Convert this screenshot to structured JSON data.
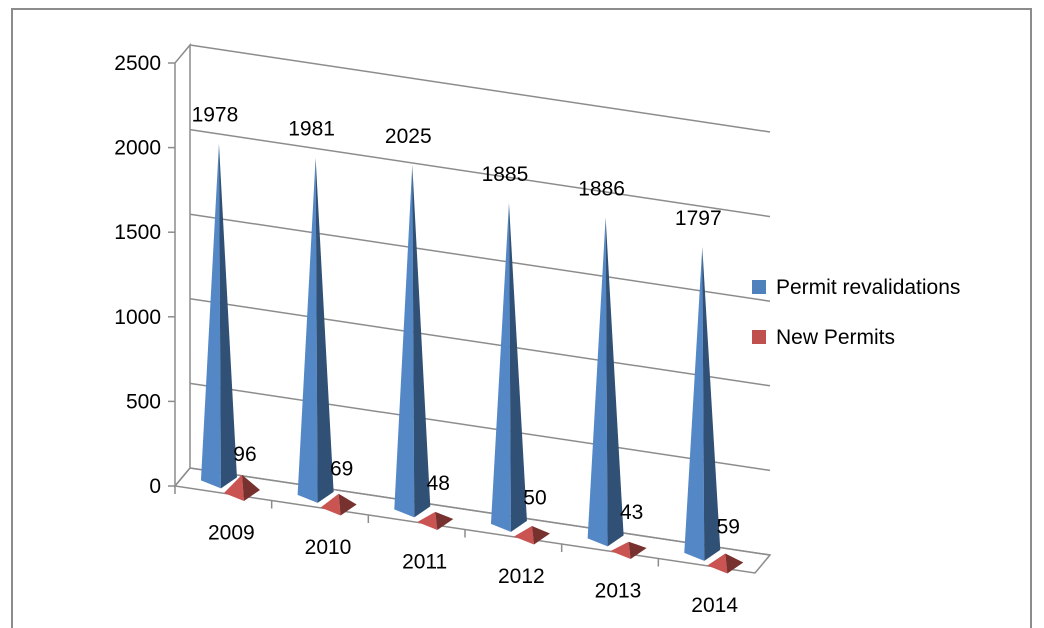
{
  "chart_data": {
    "type": "bar",
    "style": "3d-pyramid",
    "categories": [
      "2009",
      "2010",
      "2011",
      "2012",
      "2013",
      "2014"
    ],
    "series": [
      {
        "name": "Permit revalidations",
        "values": [
          1978,
          1981,
          2025,
          1885,
          1886,
          1797
        ],
        "color": "#4f81bd"
      },
      {
        "name": "New Permits",
        "values": [
          96,
          69,
          48,
          50,
          43,
          59
        ],
        "color": "#c0504d"
      }
    ],
    "yticks": [
      "0",
      "500",
      "1000",
      "1500",
      "2000",
      "2500"
    ],
    "ylim": [
      0,
      2500
    ],
    "grid": true,
    "legend": "right",
    "data_labels": true
  }
}
